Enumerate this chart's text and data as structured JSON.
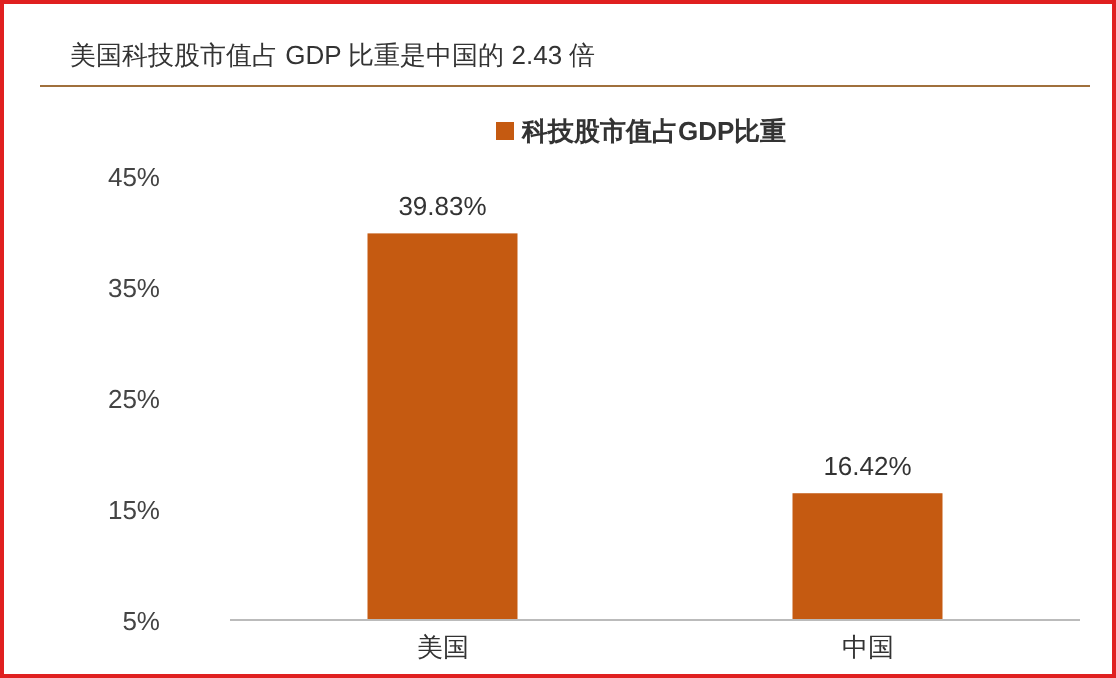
{
  "chart_data": {
    "type": "bar",
    "title": "美国科技股市值占 GDP 比重是中国的 2.43 倍",
    "categories": [
      "美国",
      "中国"
    ],
    "series": [
      {
        "name": "科技股市值占GDP比重",
        "color": "#c55a11",
        "values": [
          39.83,
          16.42
        ]
      }
    ],
    "ylim": [
      5,
      45
    ],
    "yticks": [
      {
        "value": 5,
        "label": "5%"
      },
      {
        "value": 15,
        "label": "15%"
      },
      {
        "value": 25,
        "label": "25%"
      },
      {
        "value": 35,
        "label": "35%"
      },
      {
        "value": 45,
        "label": "45%"
      }
    ],
    "value_labels": [
      "39.83%",
      "16.42%"
    ],
    "legend": "top"
  }
}
